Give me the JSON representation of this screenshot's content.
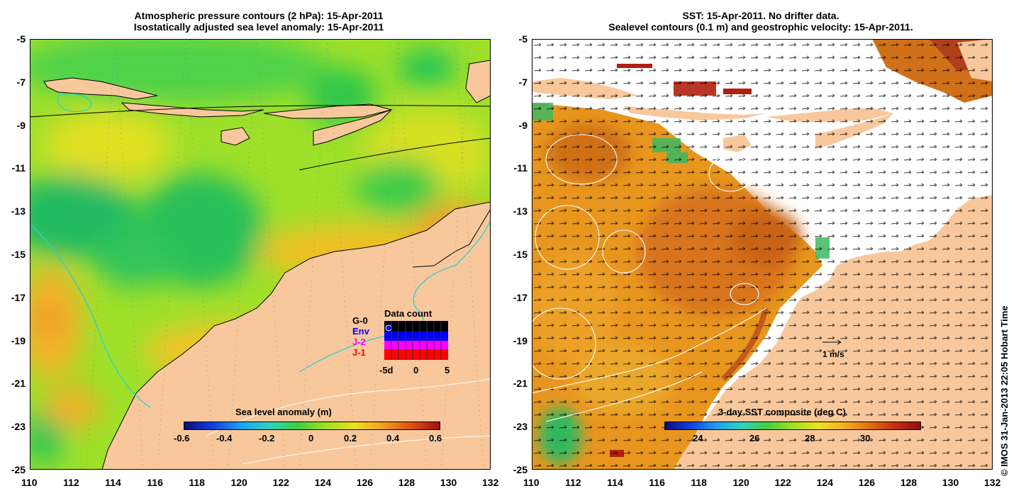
{
  "left_panel": {
    "title_line1": "Atmospheric pressure contours (2 hPa): 15-Apr-2011",
    "title_line2": "Isostatically adjusted sea level anomaly: 15-Apr-2011",
    "colorbar_label": "Sea level anomaly (m)",
    "colorbar_ticks": [
      "-0.6",
      "-0.4",
      "-0.2",
      "0",
      "0.2",
      "0.4",
      "0.6"
    ],
    "colorbar_min": -0.6,
    "colorbar_max": 0.6,
    "inset": {
      "title": "Data count",
      "legend": [
        {
          "label": "G-0",
          "color": "#000000"
        },
        {
          "label": "Env",
          "color": "#0000ff"
        },
        {
          "label": "J-2",
          "color": "#ff00ff"
        },
        {
          "label": "J-1",
          "color": "#ff0000"
        }
      ],
      "xticks": [
        "-5d",
        "0",
        "5"
      ]
    }
  },
  "right_panel": {
    "title_line1": "SST: 15-Apr-2011. No drifter data.",
    "title_line2": "Sealevel contours (0.1 m) and geostrophic velocity: 15-Apr-2011.",
    "colorbar_label": "3-day SST composite (deg C)",
    "colorbar_ticks": [
      "24",
      "26",
      "28",
      "30"
    ],
    "colorbar_min": 22.6,
    "colorbar_max": 31.5,
    "velocity_scale_label": "1 m/s"
  },
  "axes": {
    "x_ticks": [
      "110",
      "112",
      "114",
      "116",
      "118",
      "120",
      "122",
      "124",
      "126",
      "128",
      "130",
      "132"
    ],
    "y_ticks": [
      "-5",
      "-7",
      "-9",
      "-11",
      "-13",
      "-15",
      "-17",
      "-19",
      "-21",
      "-23",
      "-25"
    ],
    "lon_range": [
      110,
      132
    ],
    "lat_range": [
      -25,
      -5
    ]
  },
  "credit": "© IMOS 31-Jan-2013 22:05 Hobart Time",
  "colors": {
    "land": "#f8c89c",
    "coast": "#000000",
    "cyan_contour": "#2ad0d0"
  }
}
